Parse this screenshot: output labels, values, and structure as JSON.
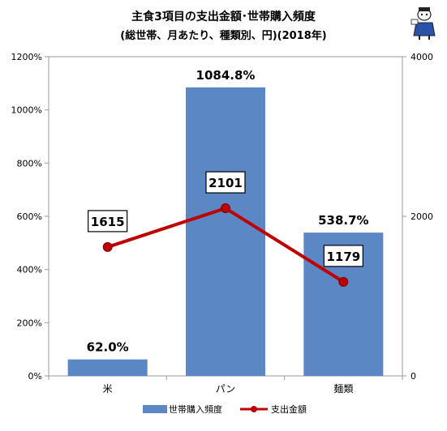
{
  "title": "主食3項目の支出金額･世帯購入頻度",
  "subtitle": "(総世帯、月あたり、種類別、円)(2018年)",
  "chart_data": {
    "type": "bar",
    "categories": [
      "米",
      "パン",
      "麺類"
    ],
    "series": [
      {
        "name": "世帯購入頻度",
        "kind": "bar",
        "axis": "left",
        "values": [
          62.0,
          1084.8,
          538.7
        ],
        "labels": [
          "62.0%",
          "1084.8%",
          "538.7%"
        ],
        "color": "#5b87c5"
      },
      {
        "name": "支出金額",
        "kind": "line",
        "axis": "right",
        "values": [
          1615,
          2101,
          1179
        ],
        "labels": [
          "1615",
          "2101",
          "1179"
        ],
        "color": "#c00000"
      }
    ],
    "y_left": {
      "ylim": [
        0,
        1200
      ],
      "ticks": [
        0,
        200,
        400,
        600,
        800,
        1000,
        1200
      ],
      "tick_labels": [
        "0%",
        "200%",
        "400%",
        "600%",
        "800%",
        "1000%",
        "1200%"
      ]
    },
    "y_right": {
      "ylim": [
        0,
        4000
      ],
      "ticks": [
        0,
        2000,
        4000
      ],
      "tick_labels": [
        "0",
        "2000",
        "4000"
      ]
    },
    "grid": false,
    "legend": "bottom"
  }
}
